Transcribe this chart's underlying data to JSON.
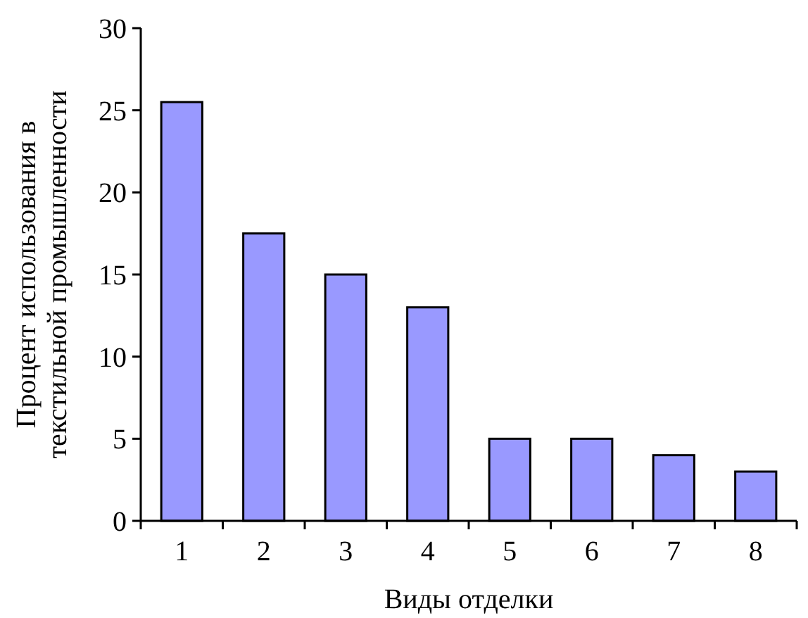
{
  "chart_data": {
    "type": "bar",
    "xlabel": "Виды отделки",
    "ylabel": "Процент использования в\nтекстильной промышленности",
    "categories": [
      "1",
      "2",
      "3",
      "4",
      "5",
      "6",
      "7",
      "8"
    ],
    "values": [
      25.5,
      17.5,
      15,
      13,
      5,
      5,
      4,
      3
    ],
    "color": "#9999ff",
    "ylim": [
      0,
      30
    ],
    "yticks": [
      0,
      5,
      10,
      15,
      20,
      25,
      30
    ],
    "grid": false
  }
}
